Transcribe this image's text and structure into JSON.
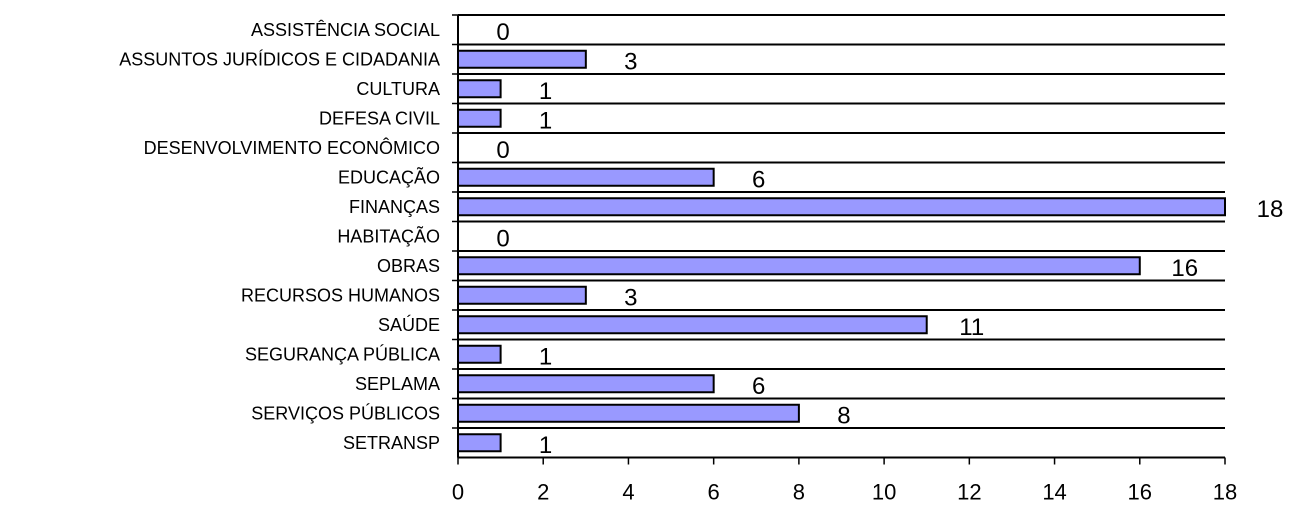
{
  "chart_data": {
    "type": "bar",
    "orientation": "horizontal",
    "categories": [
      "ASSISTÊNCIA SOCIAL",
      "ASSUNTOS JURÍDICOS E CIDADANIA",
      "CULTURA",
      "DEFESA CIVIL",
      "DESENVOLVIMENTO ECONÔMICO",
      "EDUCAÇÃO",
      "FINANÇAS",
      "HABITAÇÃO",
      "OBRAS",
      "RECURSOS HUMANOS",
      "SAÚDE",
      "SEGURANÇA PÚBLICA",
      "SEPLAMA",
      "SERVIÇOS PÚBLICOS",
      "SETRANSP"
    ],
    "values": [
      0,
      3,
      1,
      1,
      0,
      6,
      18,
      0,
      16,
      3,
      11,
      1,
      6,
      8,
      1
    ],
    "xlim": [
      0,
      18
    ],
    "xticks": [
      0,
      2,
      4,
      6,
      8,
      10,
      12,
      14,
      16,
      18
    ],
    "grid": "horizontal",
    "legend": "none",
    "title": "",
    "xlabel": "",
    "ylabel": "",
    "colors": {
      "bar_fill": "#9999ff",
      "bar_stroke": "#000000",
      "grid": "#000000"
    }
  }
}
